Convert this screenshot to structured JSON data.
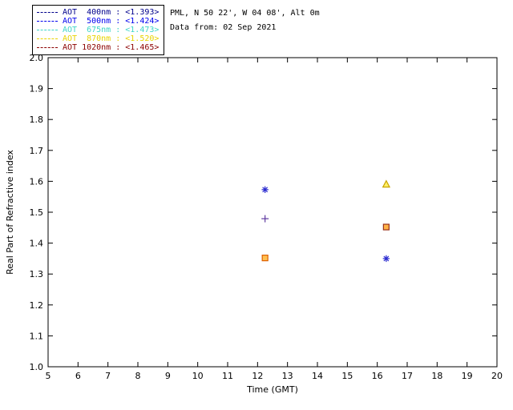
{
  "header": {
    "site_line": "PML, N 50 22', W 04 08', Alt 0m",
    "date_line": "Data from: 02 Sep 2021"
  },
  "legend": {
    "items": [
      {
        "text": "AOT  400nm : <1.393>",
        "color": "#00008B"
      },
      {
        "text": "AOT  500nm : <1.424>",
        "color": "#0000EE"
      },
      {
        "text": "AOT  675nm : <1.473>",
        "color": "#3FD6C8"
      },
      {
        "text": "AOT  870nm : <1.520>",
        "color": "#E8D400"
      },
      {
        "text": "AOT 1020nm : <1.465>",
        "color": "#8B0000"
      }
    ]
  },
  "chart_data": {
    "type": "scatter",
    "title": "",
    "xlabel": "Time (GMT)",
    "ylabel": "Real Part of Refractive index",
    "grid": false,
    "legend_position": "top-left",
    "x_axis": {
      "min": 5,
      "max": 20,
      "ticks": [
        "5",
        "6",
        "7",
        "8",
        "9",
        "10",
        "11",
        "12",
        "13",
        "14",
        "15",
        "16",
        "17",
        "18",
        "19",
        "20"
      ]
    },
    "y_axis": {
      "min": 1.0,
      "max": 2.0,
      "ticks": [
        "1.0",
        "1.1",
        "1.2",
        "1.3",
        "1.4",
        "1.5",
        "1.6",
        "1.7",
        "1.8",
        "1.9",
        "2.0"
      ]
    },
    "points": [
      {
        "x": 12.25,
        "y": 1.573,
        "marker": "asterisk",
        "color": "#2A2AD0"
      },
      {
        "x": 12.25,
        "y": 1.479,
        "marker": "plus",
        "color": "#5F3AA0"
      },
      {
        "x": 12.25,
        "y": 1.352,
        "marker": "square",
        "color": "#DD6000",
        "fill": "#FFC050"
      },
      {
        "x": 16.3,
        "y": 1.59,
        "marker": "triangle",
        "color": "#C8A400",
        "fill": "#FFF066"
      },
      {
        "x": 16.3,
        "y": 1.452,
        "marker": "square",
        "color": "#99321A",
        "fill": "#FFB347"
      },
      {
        "x": 16.3,
        "y": 1.35,
        "marker": "asterisk",
        "color": "#2A2AD0"
      }
    ]
  }
}
